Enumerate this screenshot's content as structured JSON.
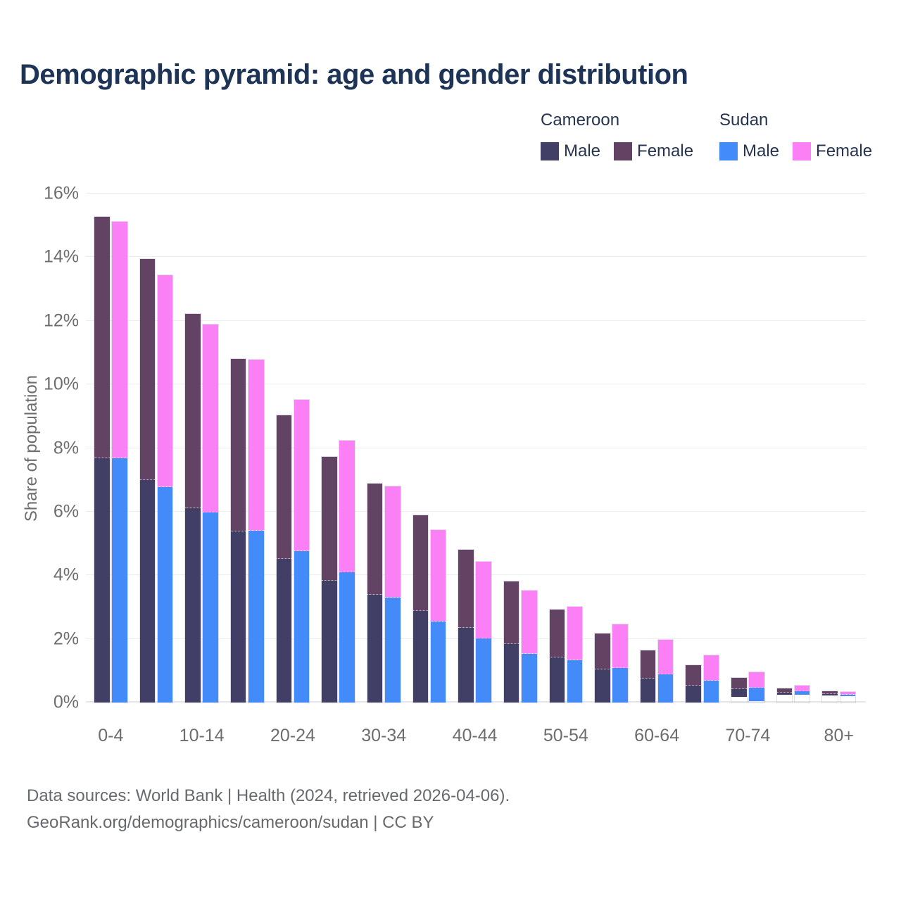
{
  "title": "Demographic pyramid: age and gender distribution",
  "colors": {
    "cameroon_male": "#413F66",
    "cameroon_female": "#634363",
    "sudan_male": "#428BF9",
    "sudan_female": "#FB80F5",
    "title_text": "#1e3457",
    "axis_text": "#6d6d6d",
    "gridline": "#ededf1"
  },
  "legend": {
    "groups": [
      {
        "header": "Cameroon",
        "items": [
          {
            "label": "Male",
            "color_key": "cameroon_male"
          },
          {
            "label": "Female",
            "color_key": "cameroon_female"
          }
        ]
      },
      {
        "header": "Sudan",
        "items": [
          {
            "label": "Male",
            "color_key": "sudan_male"
          },
          {
            "label": "Female",
            "color_key": "sudan_female"
          }
        ]
      }
    ]
  },
  "y_axis": {
    "label": "Share of population",
    "tick_values": [
      0,
      2,
      4,
      6,
      8,
      10,
      12,
      14,
      16
    ],
    "tick_labels": [
      "0%",
      "2%",
      "4%",
      "6%",
      "8%",
      "10%",
      "12%",
      "14%",
      "16%"
    ],
    "max": 16
  },
  "x_axis": {
    "tick_indexes": [
      0,
      2,
      4,
      6,
      8,
      10,
      12,
      14,
      16
    ],
    "tick_labels": [
      "0-4",
      "10-14",
      "20-24",
      "30-34",
      "40-44",
      "50-54",
      "60-64",
      "70-74",
      "80+"
    ]
  },
  "footer": {
    "line1": "Data sources: World Bank | Health (2024, retrieved 2026-04-06).",
    "line2": "GeoRank.org/demographics/cameroon/sudan | CC BY"
  },
  "chart_data": {
    "type": "bar",
    "stacked": true,
    "grouped_pairs": [
      "Cameroon",
      "Sudan"
    ],
    "title": "Demographic pyramid: age and gender distribution",
    "xlabel": "",
    "ylabel": "Share of population",
    "ylim": [
      0,
      16
    ],
    "grid": true,
    "legend_position": "top-right",
    "categories": [
      "0-4",
      "5-9",
      "10-14",
      "15-19",
      "20-24",
      "25-29",
      "30-34",
      "35-39",
      "40-44",
      "45-49",
      "50-54",
      "55-59",
      "60-64",
      "65-69",
      "70-74",
      "75-79",
      "80+"
    ],
    "series": [
      {
        "name": "Cameroon Male",
        "country": "Cameroon",
        "gender": "Male",
        "color_key": "cameroon_male",
        "values": [
          7.7,
          7.0,
          6.12,
          5.4,
          4.52,
          3.85,
          3.39,
          2.89,
          2.36,
          1.85,
          1.43,
          1.06,
          0.77,
          0.55,
          0.33,
          0.18,
          0.13
        ]
      },
      {
        "name": "Cameroon Female",
        "country": "Cameroon",
        "gender": "Female",
        "color_key": "cameroon_female",
        "values": [
          7.58,
          6.95,
          6.1,
          5.4,
          4.52,
          3.87,
          3.49,
          3.0,
          2.45,
          1.95,
          1.5,
          1.12,
          0.86,
          0.62,
          0.44,
          0.26,
          0.22
        ]
      },
      {
        "name": "Sudan Male",
        "country": "Sudan",
        "gender": "Male",
        "color_key": "sudan_male",
        "values": [
          7.7,
          6.78,
          5.99,
          5.42,
          4.76,
          4.1,
          3.3,
          2.56,
          2.03,
          1.54,
          1.34,
          1.1,
          0.9,
          0.7,
          0.46,
          0.24,
          0.15
        ]
      },
      {
        "name": "Sudan Female",
        "country": "Sudan",
        "gender": "Female",
        "color_key": "sudan_female",
        "values": [
          7.42,
          6.65,
          5.9,
          5.36,
          4.76,
          4.14,
          3.5,
          2.86,
          2.4,
          1.98,
          1.68,
          1.36,
          1.06,
          0.78,
          0.49,
          0.29,
          0.18
        ]
      }
    ]
  }
}
